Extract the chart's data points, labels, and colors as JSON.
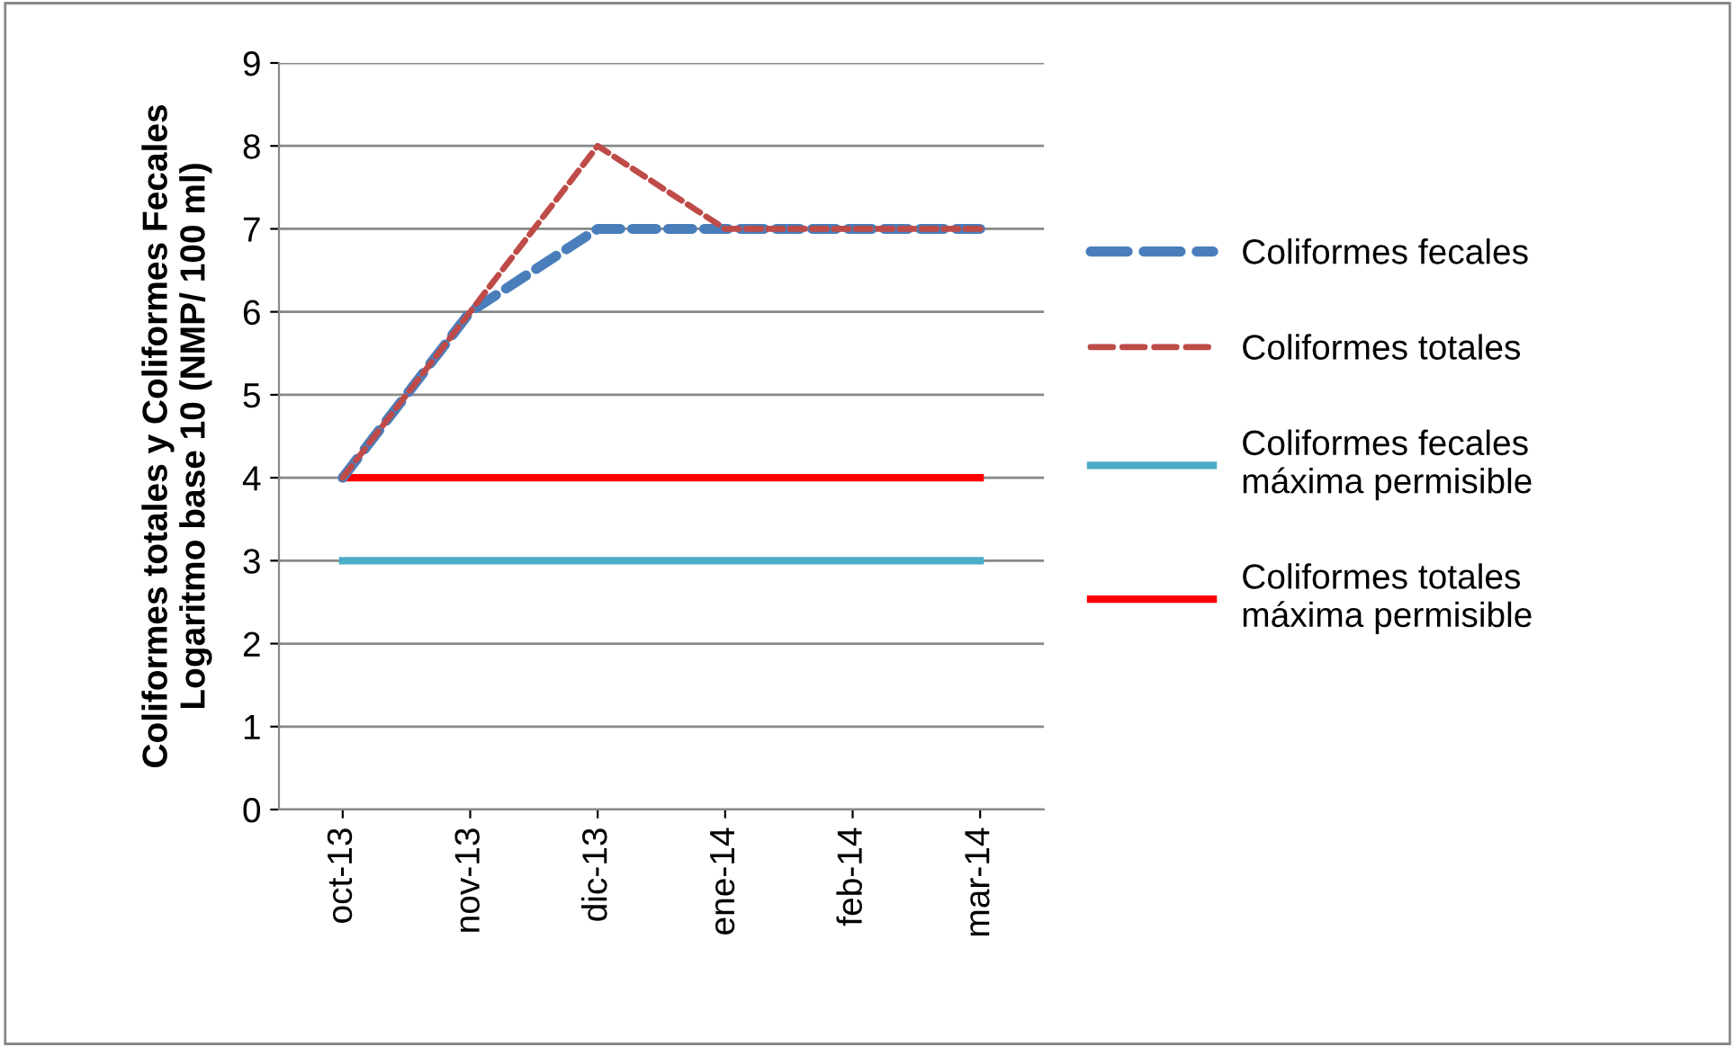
{
  "chart_data": {
    "type": "line",
    "ylabel": "Coliformes totales y Coliformes Fecales\nLogaritmo base 10 (NMP/ 100 ml)",
    "categories": [
      "oct-13",
      "nov-13",
      "dic-13",
      "ene-14",
      "feb-14",
      "mar-14"
    ],
    "series": [
      {
        "name": "Coliformes fecales",
        "color": "#4a7ebb",
        "line_style": "dashed",
        "values": [
          4,
          6,
          7,
          7,
          7,
          7
        ]
      },
      {
        "name": "Coliformes totales",
        "color": "#be4b48",
        "line_style": "dashed",
        "values": [
          4,
          6,
          8,
          7,
          7,
          7
        ]
      },
      {
        "name": "Coliformes fecales máxima permisible",
        "color": "#4bacc6",
        "line_style": "solid",
        "values": [
          3,
          3,
          3,
          3,
          3,
          3
        ]
      },
      {
        "name": "Coliformes totales máxima permisible",
        "color": "#ff0000",
        "line_style": "solid",
        "values": [
          4,
          4,
          4,
          4,
          4,
          4
        ]
      }
    ],
    "ylim": [
      0,
      9
    ],
    "yticks": [
      0,
      1,
      2,
      3,
      4,
      5,
      6,
      7,
      8,
      9
    ],
    "grid": "y",
    "legend": "right",
    "marker": "none"
  }
}
